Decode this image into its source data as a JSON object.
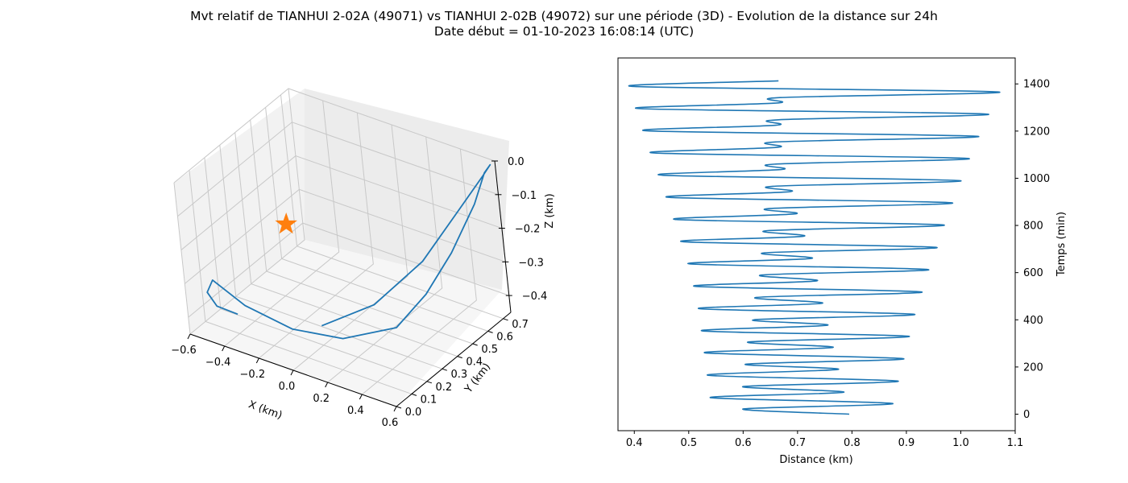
{
  "figure": {
    "title_line1": "Mvt relatif de TIANHUI 2-02A (49071) vs TIANHUI 2-02B (49072) sur une période (3D) - Evolution de la distance sur 24h",
    "title_line2": "Date début = 01-10-2023 16:08:14 (UTC)"
  },
  "colors": {
    "line": "#1f77b4",
    "marker": "#ff7f0e"
  },
  "chart_data": [
    {
      "type": "line3d",
      "xlabel": "X (km)",
      "ylabel": "Y (km)",
      "zlabel": "Z (km)",
      "x_ticks": [
        "−0.6",
        "−0.4",
        "−0.2",
        "0.0",
        "0.2",
        "0.4",
        "0.6"
      ],
      "y_ticks": [
        "0.0",
        "0.1",
        "0.2",
        "0.3",
        "0.4",
        "0.5",
        "0.6",
        "0.7"
      ],
      "z_ticks": [
        "0.0",
        "−0.1",
        "−0.2",
        "−0.3",
        "−0.4"
      ],
      "xlim": [
        -0.6,
        0.6
      ],
      "ylim": [
        0.0,
        0.75
      ],
      "zlim": [
        -0.45,
        0.0
      ],
      "marker": {
        "symbol": "star",
        "x": -0.3,
        "y": 0.35,
        "z": -0.2
      },
      "trajectory": {
        "x": [
          -0.05,
          0.15,
          0.35,
          0.48,
          0.57,
          0.6,
          0.58,
          0.55,
          0.48,
          0.4,
          0.3,
          0.1,
          -0.1,
          -0.3,
          -0.45,
          -0.52,
          -0.52,
          -0.45
        ],
        "y": [
          0.25,
          0.38,
          0.5,
          0.62,
          0.7,
          0.72,
          0.7,
          0.65,
          0.55,
          0.45,
          0.35,
          0.22,
          0.12,
          0.05,
          0.02,
          0.05,
          0.1,
          0.15
        ],
        "z": [
          -0.42,
          -0.37,
          -0.25,
          -0.12,
          -0.03,
          0.0,
          -0.02,
          -0.1,
          -0.22,
          -0.32,
          -0.4,
          -0.42,
          -0.39,
          -0.33,
          -0.27,
          -0.33,
          -0.39,
          -0.42
        ]
      }
    },
    {
      "type": "line",
      "xlabel": "Distance (km)",
      "ylabel": "Temps (min)",
      "xlim": [
        0.37,
        1.1
      ],
      "ylim": [
        -70,
        1510
      ],
      "x_ticks": [
        "0.4",
        "0.5",
        "0.6",
        "0.7",
        "0.8",
        "0.9",
        "1.0",
        "1.1"
      ],
      "y_ticks": [
        "0",
        "200",
        "400",
        "600",
        "800",
        "1000",
        "1200",
        "1400"
      ],
      "y_axis_side": "right",
      "series": [
        {
          "x": [
            0.795,
            0.6,
            0.875,
            0.54,
            0.785,
            0.6,
            0.885,
            0.535,
            0.775,
            0.605,
            0.895,
            0.53,
            0.765,
            0.61,
            0.905,
            0.525,
            0.755,
            0.62,
            0.915,
            0.52,
            0.745,
            0.625,
            0.928,
            0.512,
            0.735,
            0.635,
            0.94,
            0.502,
            0.725,
            0.64,
            0.955,
            0.49,
            0.71,
            0.645,
            0.968,
            0.478,
            0.695,
            0.65,
            0.983,
            0.465,
            0.685,
            0.655,
            0.998,
            0.452,
            0.67,
            0.658,
            1.013,
            0.438,
            0.662,
            0.66,
            1.03,
            0.425,
            0.66,
            0.665,
            1.048,
            0.412,
            0.662,
            0.668,
            1.068,
            0.4,
            0.665
          ],
          "y": [
            0,
            22,
            45,
            70,
            93,
            117,
            140,
            165,
            190,
            212,
            235,
            260,
            283,
            306,
            330,
            353,
            377,
            400,
            423,
            447,
            470,
            495,
            518,
            542,
            565,
            590,
            613,
            637,
            660,
            684,
            707,
            731,
            754,
            778,
            802,
            825,
            849,
            872,
            896,
            919,
            943,
            966,
            990,
            1013,
            1037,
            1060,
            1084,
            1107,
            1131,
            1154,
            1178,
            1201,
            1225,
            1248,
            1272,
            1295,
            1319,
            1342,
            1366,
            1389,
            1413
          ]
        }
      ]
    }
  ]
}
